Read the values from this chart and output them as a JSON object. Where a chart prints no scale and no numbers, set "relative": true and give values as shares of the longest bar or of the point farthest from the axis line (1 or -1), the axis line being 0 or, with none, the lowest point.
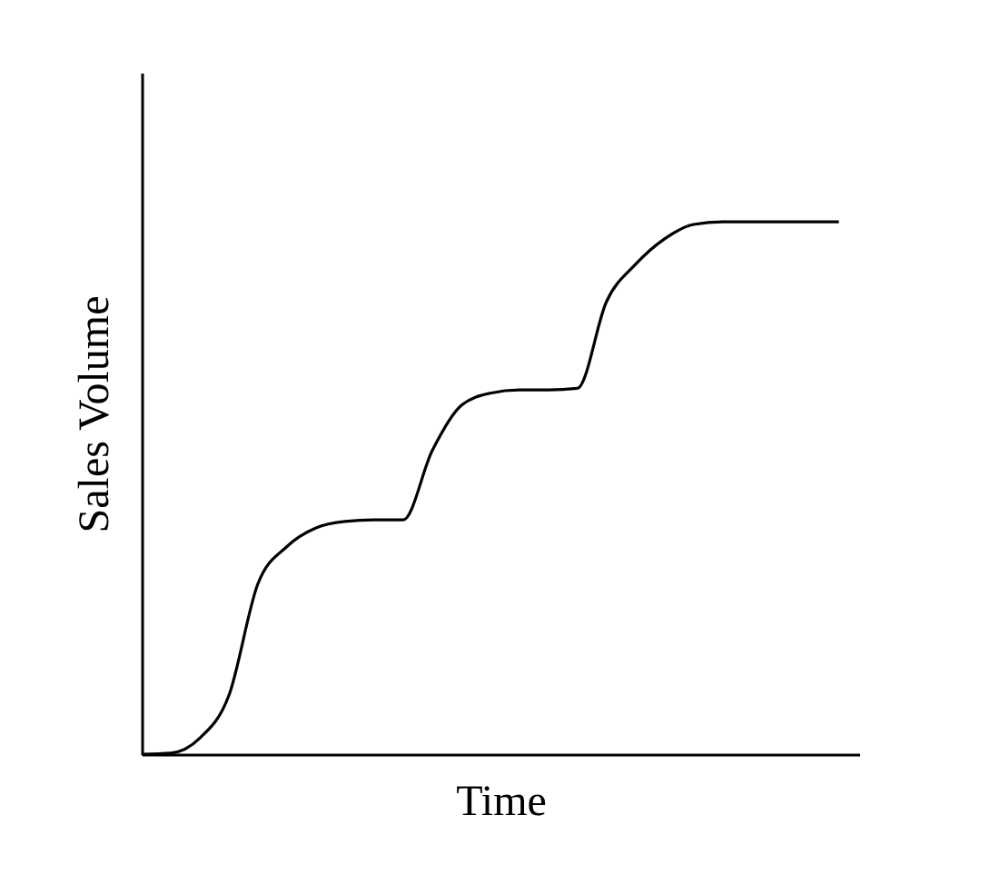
{
  "chart_data": {
    "type": "line",
    "relative": true,
    "xlabel": "Time",
    "ylabel": "Sales Volume",
    "grid": false,
    "tick_labels": false,
    "line_style": "solid",
    "marker": "none",
    "categories": [
      null,
      null,
      null,
      null,
      null,
      null,
      null,
      null,
      null,
      null,
      null,
      null,
      null,
      null,
      null,
      null,
      null,
      null,
      null,
      null,
      null,
      null,
      null,
      null,
      null
    ],
    "series": [
      {
        "color": "#000000",
        "values": [
          0,
          0.002,
          0.03,
          0.11,
          0.32,
          0.39,
          0.425,
          0.437,
          0.44,
          0.44,
          0.57,
          0.655,
          0.678,
          0.684,
          0.684,
          0.687,
          0.85,
          0.92,
          0.968,
          0.995,
          1,
          1,
          1,
          1,
          1
        ]
      }
    ]
  }
}
